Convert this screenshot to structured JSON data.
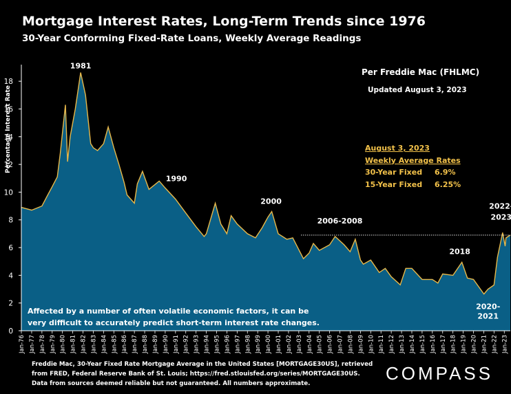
{
  "header": {
    "title": "Mortgage Interest Rates, Long-Term Trends since 1976",
    "subtitle": "30-Year Conforming Fixed-Rate Loans, Weekly Average Readings"
  },
  "source_box": {
    "line1": "Per Freddie Mac (FHLMC)",
    "line2": "Updated August 3, 2023"
  },
  "rates": {
    "date": "August 3, 2023",
    "heading": "Weekly Average Rates",
    "row1_label": "30-Year Fixed",
    "row1_value": "6.9%",
    "row2_label": "15-Year Fixed",
    "row2_value": "6.25%"
  },
  "note": {
    "line1": "Affected by a number of often volatile economic factors, it can be",
    "line2": "very difficult to accurately predict short-term interest rate changes."
  },
  "footer": {
    "line1": "Freddie Mac, 30-Year Fixed Rate Mortgage Average in the United States [MORTGAGE30US], retrieved",
    "line2": "from FRED, Federal Reserve Bank of St. Louis; https://fred.stlouisfed.org/series/MORTGAGE30US.",
    "line3": "Data from sources deemed reliable but not guaranteed. All numbers approximate."
  },
  "logo": "COMPASS",
  "colors": {
    "fill": "#0a5f86",
    "line": "#e8b84a",
    "ref_line": "#ffffff",
    "background": "#000000"
  },
  "chart_data": {
    "type": "area",
    "title": "Mortgage Interest Rates, Long-Term Trends since 1976",
    "subtitle": "30-Year Conforming Fixed-Rate Loans, Weekly Average Readings",
    "ylabel": "Percentage Interest  Rate",
    "ylim": [
      0,
      19
    ],
    "yticks": [
      0,
      2,
      4,
      6,
      8,
      10,
      12,
      14,
      16,
      18
    ],
    "xlim": [
      "1976-01-01",
      "2023-08-03"
    ],
    "xtick_labels": [
      "Jan-76",
      "Jan-77",
      "Jan-78",
      "Jan-79",
      "Jan-80",
      "Jan-81",
      "Jan-82",
      "Jan-83",
      "Jan-84",
      "Jan-85",
      "Jan-86",
      "Jan-87",
      "Jan-88",
      "Jan-89",
      "Jan-90",
      "Jan-91",
      "Jan-92",
      "Jan-93",
      "Jan-94",
      "Jan-95",
      "Jan-96",
      "Jan-97",
      "Jan-98",
      "Jan-99",
      "Jan-00",
      "Jan-01",
      "Jan-02",
      "Jan-03",
      "Jan-04",
      "Jan-05",
      "Jan-06",
      "Jan-07",
      "Jan-08",
      "Jan-09",
      "Jan-10",
      "Jan-11",
      "Jan-12",
      "Jan-13",
      "Jan-14",
      "Jan-15",
      "Jan-16",
      "Jan-17",
      "Jan-18",
      "Jan-19",
      "Jan-20",
      "Jan-21",
      "Jan-22",
      "Jan-23"
    ],
    "grid": false,
    "series": [
      {
        "x": [
          "1976-01-01",
          "1977-01-01",
          "1978-01-01",
          "1978-07-01",
          "1979-01-01",
          "1979-07-01",
          "1979-10-15",
          "1980-04-15",
          "1980-07-01",
          "1980-10-01",
          "1981-04-01",
          "1981-10-09",
          "1982-04-01",
          "1982-10-01",
          "1983-01-01",
          "1983-06-01",
          "1984-01-01",
          "1984-06-15",
          "1985-01-01",
          "1985-07-01",
          "1986-01-01",
          "1986-04-15",
          "1987-01-01",
          "1987-04-15",
          "1987-10-15",
          "1988-06-01",
          "1989-06-01",
          "1990-01-01",
          "1991-01-01",
          "1992-01-01",
          "1993-01-01",
          "1993-10-15",
          "1994-01-01",
          "1994-11-15",
          "1995-06-01",
          "1996-01-01",
          "1996-06-01",
          "1997-01-01",
          "1998-01-01",
          "1998-10-15",
          "1999-06-01",
          "2000-01-01",
          "2000-05-15",
          "2001-01-01",
          "2001-11-01",
          "2002-06-01",
          "2003-06-15",
          "2004-01-01",
          "2004-06-01",
          "2005-01-01",
          "2006-01-01",
          "2006-07-15",
          "2007-06-01",
          "2008-01-01",
          "2008-07-01",
          "2009-01-01",
          "2009-04-15",
          "2010-01-01",
          "2010-11-01",
          "2011-06-01",
          "2012-01-01",
          "2012-11-15",
          "2013-06-01",
          "2014-01-01",
          "2015-01-01",
          "2016-01-01",
          "2016-07-15",
          "2017-01-01",
          "2018-01-01",
          "2018-11-15",
          "2019-06-01",
          "2020-01-01",
          "2021-01-07",
          "2021-06-01",
          "2022-01-01",
          "2022-05-01",
          "2022-11-01",
          "2023-02-01",
          "2023-03-01",
          "2023-08-03"
        ],
        "y": [
          8.9,
          8.7,
          9.0,
          9.7,
          10.4,
          11.1,
          12.8,
          16.3,
          12.2,
          14.0,
          16.0,
          18.63,
          17.0,
          13.5,
          13.2,
          13.0,
          13.5,
          14.7,
          13.2,
          12.0,
          10.7,
          9.8,
          9.2,
          10.6,
          11.5,
          10.2,
          10.8,
          10.3,
          9.5,
          8.5,
          7.5,
          6.8,
          7.0,
          9.2,
          7.7,
          7.0,
          8.3,
          7.7,
          7.0,
          6.7,
          7.4,
          8.2,
          8.6,
          7.0,
          6.6,
          6.7,
          5.2,
          5.6,
          6.3,
          5.8,
          6.2,
          6.8,
          6.2,
          5.7,
          6.6,
          5.1,
          4.8,
          5.1,
          4.2,
          4.5,
          3.9,
          3.31,
          4.5,
          4.5,
          3.7,
          3.7,
          3.44,
          4.1,
          4.0,
          4.94,
          3.8,
          3.7,
          2.65,
          3.0,
          3.3,
          5.3,
          7.08,
          6.1,
          6.7,
          6.9
        ]
      }
    ],
    "reference_line": {
      "y": 6.9
    },
    "annotations": [
      {
        "text": "1981",
        "x": "1981-10-09",
        "y": 18.63
      },
      {
        "text": "1990",
        "x": "1990-06-01",
        "y": 10.3
      },
      {
        "text": "2000",
        "x": "2000-05-15",
        "y": 8.6
      },
      {
        "text": "2006-2008",
        "x": "2007-01-01",
        "y": 6.8
      },
      {
        "text": "2018",
        "x": "2018-11-15",
        "y": 4.94
      },
      {
        "text": "2020-",
        "x": "2021-01-07",
        "y": 2.65
      },
      {
        "text": "2021",
        "x": "2021-01-07",
        "y": 2.65
      },
      {
        "text": "2022-",
        "x": "2022-11-01",
        "y": 7.08
      },
      {
        "text": "2023",
        "x": "2022-11-01",
        "y": 7.08
      }
    ]
  }
}
